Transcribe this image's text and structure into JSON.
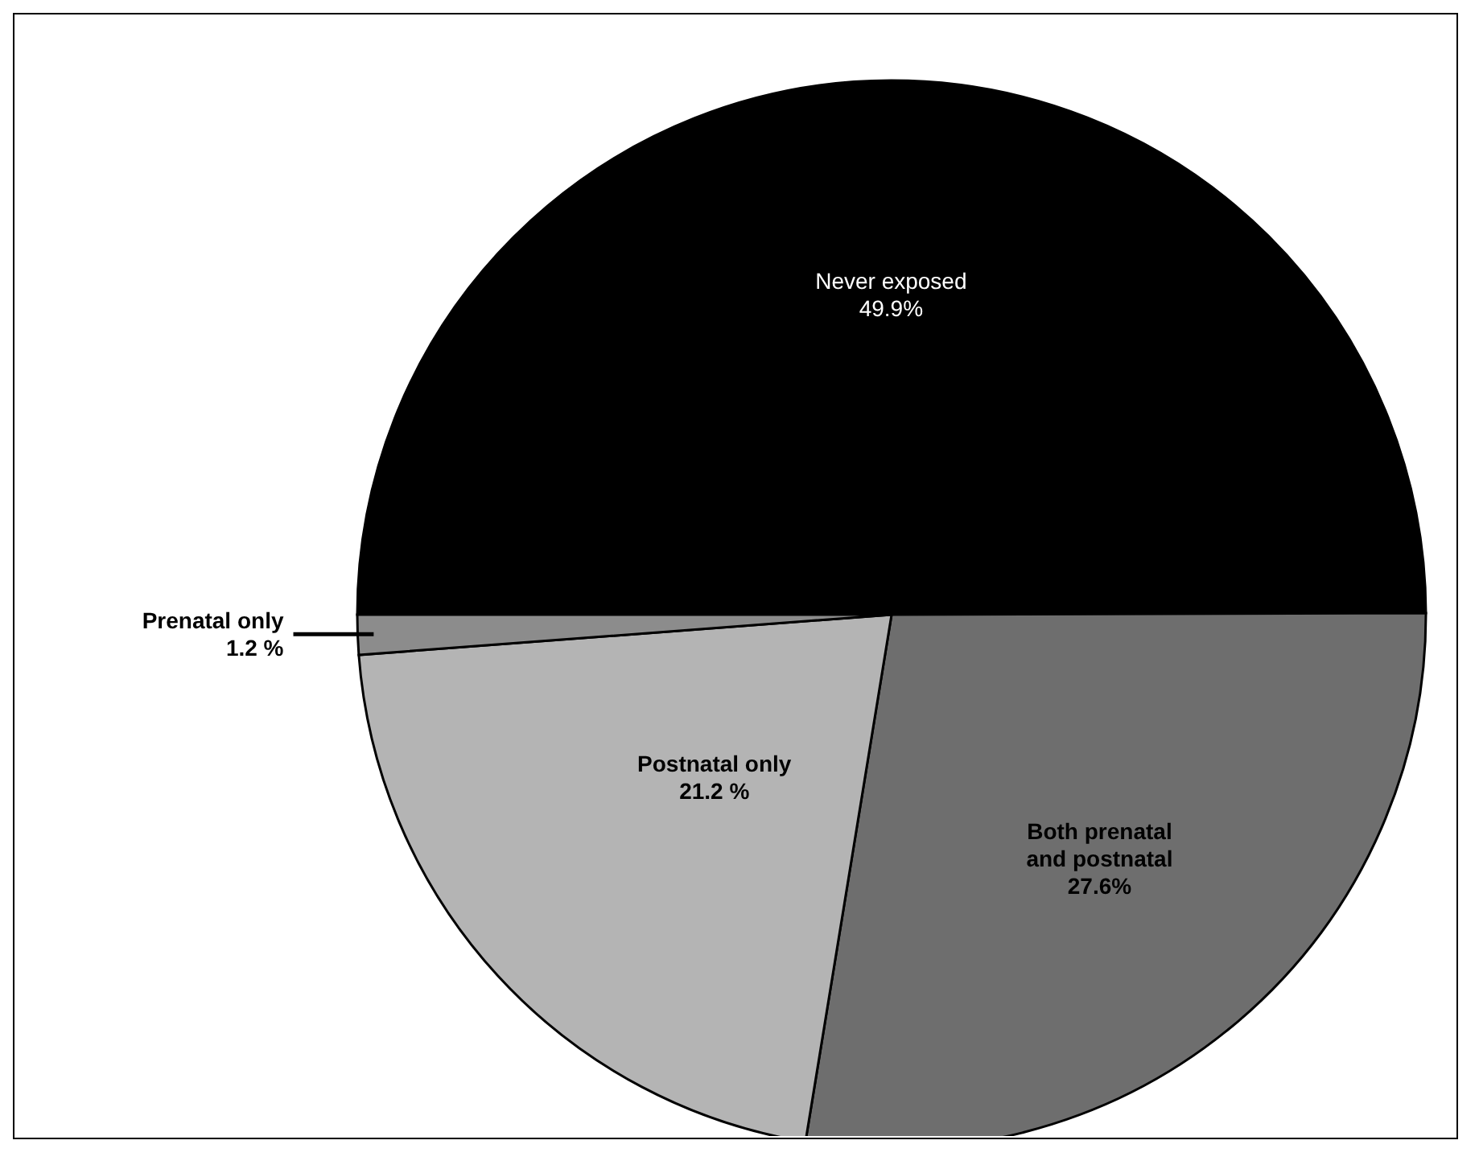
{
  "chart_data": {
    "type": "pie",
    "categories": [
      "Never exposed",
      "Both prenatal and postnatal",
      "Postnatal only",
      "Prenatal only"
    ],
    "values": [
      49.9,
      27.6,
      21.2,
      1.2
    ],
    "value_labels": [
      "49.9%",
      "27.6%",
      "21.2 %",
      "1.2 %"
    ],
    "colors": [
      "#000000",
      "#6e6e6e",
      "#b4b4b4",
      "#8c8c8c"
    ]
  }
}
